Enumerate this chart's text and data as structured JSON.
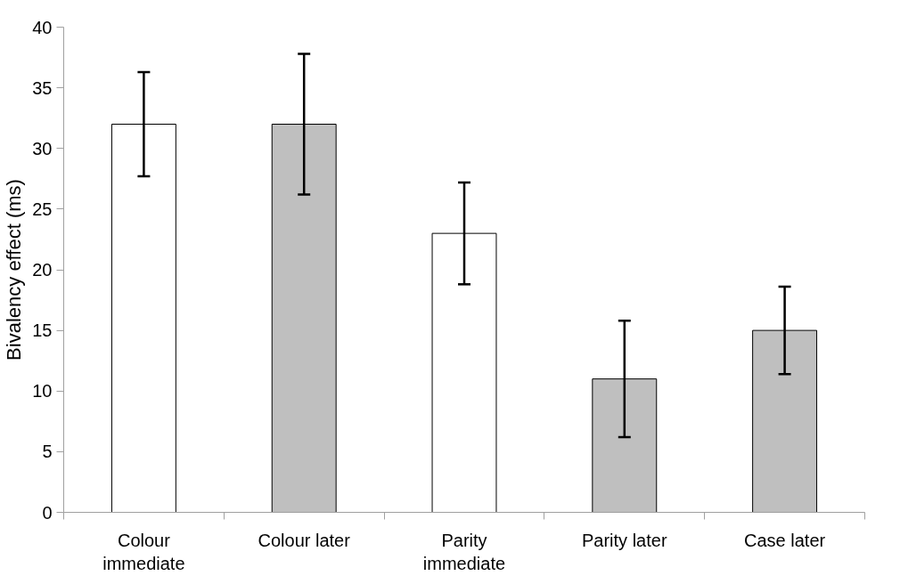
{
  "chart_data": {
    "type": "bar",
    "ylabel": "Bivalency effect (ms)",
    "categories": [
      "Colour immediate",
      "Colour later",
      "Parity immediate",
      "Parity later",
      "Case later"
    ],
    "values": [
      32,
      32,
      23,
      11,
      15
    ],
    "colors": [
      "#ffffff",
      "#bfbfbf",
      "#ffffff",
      "#bfbfbf",
      "#bfbfbf"
    ],
    "errors": [
      4.3,
      5.8,
      4.2,
      4.8,
      3.6
    ],
    "ylim": [
      0,
      40
    ],
    "yticks": [
      0,
      5,
      10,
      15,
      20,
      25,
      30,
      35,
      40
    ],
    "grid": false
  }
}
